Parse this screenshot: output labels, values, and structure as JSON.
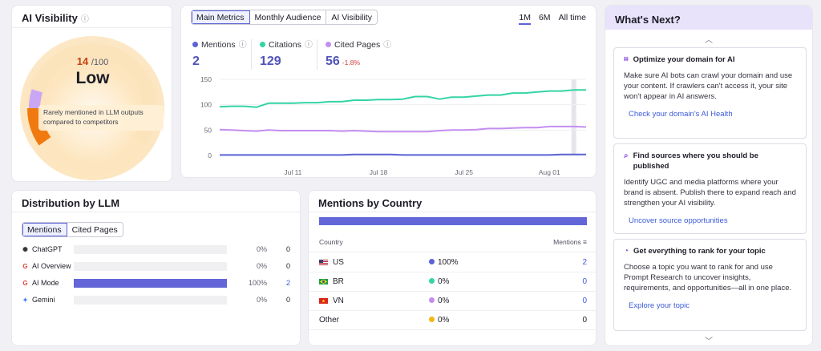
{
  "visibility": {
    "title": "AI Visibility",
    "info_icon": "info-icon",
    "score": "14",
    "score_max": "/100",
    "score_fraction": 0.14,
    "level": "Low",
    "note": "Rarely mentioned in LLM outputs compared to competitors",
    "colors": {
      "level_accent": "#c8410b",
      "gauge_low": "#f07a10",
      "gauge_band": "#c9a7f5"
    }
  },
  "chart_card": {
    "tabs": [
      "Main Metrics",
      "Monthly Audience",
      "AI Visibility"
    ],
    "active_tab": "Main Metrics",
    "ranges": [
      "1M",
      "6M",
      "All time"
    ],
    "active_range": "1M",
    "metrics": [
      {
        "label": "Mentions",
        "value": "2",
        "color": "#5b63d6"
      },
      {
        "label": "Citations",
        "value": "129",
        "color": "#34d4a4"
      },
      {
        "label": "Cited Pages",
        "value": "56",
        "delta": "-1.8%",
        "color": "#c48ef0"
      }
    ]
  },
  "chart_data": {
    "type": "line",
    "y_ticks": [
      "150",
      "100",
      "50",
      "0"
    ],
    "ylim": [
      0,
      150
    ],
    "x_ticks": [
      {
        "label": "Jul 11",
        "day": 11
      },
      {
        "label": "Jul 18",
        "day": 18
      },
      {
        "label": "Jul 25",
        "day": 25
      },
      {
        "label": "Aug 01",
        "day": 32
      }
    ],
    "x_range": [
      5,
      35
    ],
    "days": [
      5,
      6,
      7,
      8,
      9,
      10,
      11,
      12,
      13,
      14,
      15,
      16,
      17,
      18,
      19,
      20,
      21,
      22,
      23,
      24,
      25,
      26,
      27,
      28,
      29,
      30,
      31,
      32,
      33,
      34,
      35
    ],
    "series": [
      {
        "name": "Citations",
        "color": "#34d4a4",
        "values": [
          96,
          97,
          97,
          95,
          103,
          103,
          103,
          104,
          104,
          106,
          106,
          109,
          109,
          110,
          110,
          111,
          116,
          116,
          111,
          115,
          115,
          117,
          119,
          119,
          123,
          123,
          125,
          127,
          127,
          129,
          129
        ]
      },
      {
        "name": "Cited Pages",
        "color": "#c48ef0",
        "values": [
          51,
          50,
          49,
          48,
          50,
          49,
          49,
          49,
          49,
          49,
          48,
          49,
          48,
          47,
          47,
          47,
          47,
          47,
          49,
          50,
          50,
          51,
          53,
          53,
          54,
          55,
          55,
          57,
          57,
          57,
          56
        ]
      },
      {
        "name": "Mentions",
        "color": "#5b63d6",
        "values": [
          1,
          1,
          1,
          1,
          1,
          1,
          1,
          1,
          1,
          1,
          1,
          2,
          2,
          2,
          2,
          1,
          1,
          1,
          1,
          1,
          1,
          1,
          1,
          1,
          1,
          1,
          1,
          1,
          2,
          2,
          2
        ]
      }
    ]
  },
  "distribution": {
    "title": "Distribution by LLM",
    "tabs": [
      "Mentions",
      "Cited Pages"
    ],
    "rows": [
      {
        "name": "ChatGPT",
        "icon": "chatgpt-icon",
        "pct": "0%",
        "fraction": 0,
        "count": "0",
        "link": false
      },
      {
        "name": "AI Overview",
        "icon": "google-icon",
        "pct": "0%",
        "fraction": 0,
        "count": "0",
        "link": false
      },
      {
        "name": "AI Mode",
        "icon": "google-icon",
        "pct": "100%",
        "fraction": 1,
        "count": "2",
        "link": true
      },
      {
        "name": "Gemini",
        "icon": "gemini-icon",
        "pct": "0%",
        "fraction": 0,
        "count": "0",
        "link": false
      }
    ]
  },
  "country": {
    "title": "Mentions by Country",
    "col_country": "Country",
    "col_mentions": "Mentions",
    "rows": [
      {
        "name": "US",
        "flag": "us-flag-icon",
        "share": "100%",
        "dot": "#5b63d6",
        "count": "2",
        "link": true
      },
      {
        "name": "BR",
        "flag": "br-flag-icon",
        "share": "0%",
        "dot": "#34d4a4",
        "count": "0",
        "link": true
      },
      {
        "name": "VN",
        "flag": "vn-flag-icon",
        "share": "0%",
        "dot": "#c48ef0",
        "count": "0",
        "link": true
      },
      {
        "name": "Other",
        "flag": "",
        "share": "0%",
        "dot": "#f2b714",
        "count": "0",
        "link": false
      }
    ]
  },
  "next": {
    "title": "What's Next?",
    "tips": [
      {
        "title": "Optimize your domain for AI",
        "icon": "domain-optimize-icon",
        "body": "Make sure AI bots can crawl your domain and use your content. If crawlers can't access it, your site won't appear in AI answers.",
        "link": "Check your domain's AI Health"
      },
      {
        "title": "Find sources where you should be published",
        "icon": "search-icon",
        "body": "Identify UGC and media platforms where your brand is absent. Publish there to expand reach and strengthen your AI visibility.",
        "link": "Uncover source opportunities"
      },
      {
        "title": "Get everything to rank for your topic",
        "icon": "topic-chart-icon",
        "body": "Choose a topic you want to rank for and use Prompt Research to uncover insights, requirements, and opportunities—all in one place.",
        "link": "Explore your topic"
      }
    ]
  }
}
